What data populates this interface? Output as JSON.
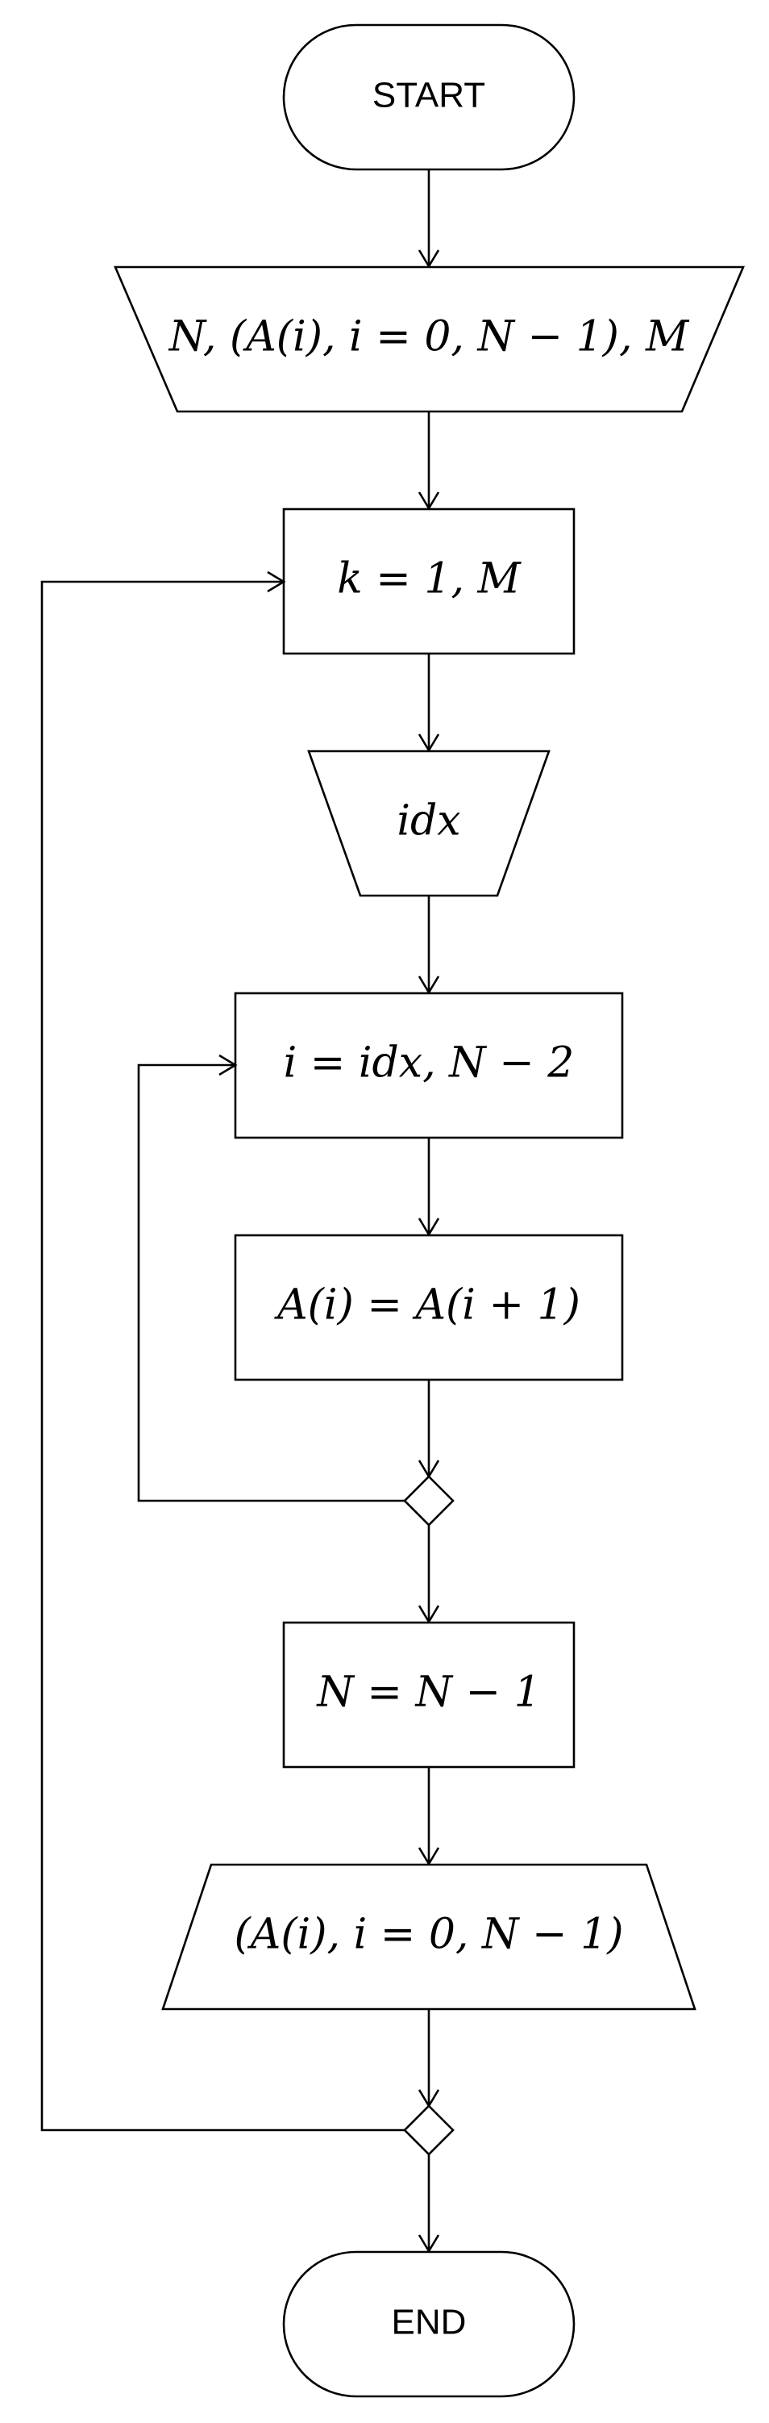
{
  "flowchart": {
    "start": "START",
    "input_1": "N, (A(i), i = 0, N − 1), M",
    "loop_outer": "k = 1, M",
    "input_2": "idx",
    "loop_inner": "i = idx, N − 2",
    "assign_shift": "A(i) = A(i + 1)",
    "assign_decrement": "N = N − 1",
    "output_array": "(A(i), i = 0, N − 1)",
    "end": "END"
  }
}
